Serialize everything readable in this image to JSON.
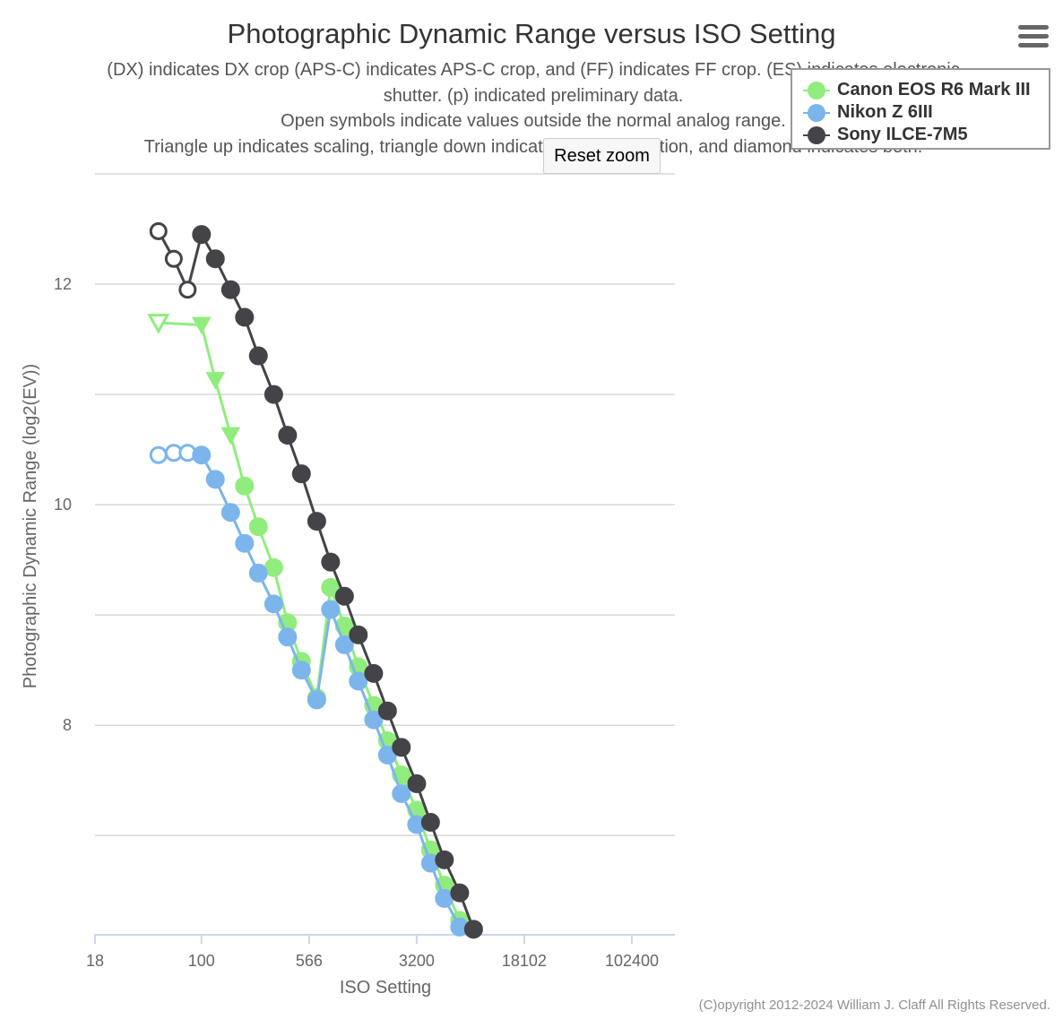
{
  "header": {
    "title": "Photographic Dynamic Range versus ISO Setting",
    "subtitle_lines": [
      "(DX) indicates DX crop (APS-C) indicates APS-C crop, and (FF) indicates FF crop. (ES) indicates electronic",
      "shutter. (p) indicated preliminary data.",
      "Open symbols indicate values outside the normal analog range.",
      "Triangle up indicates scaling, triangle down indicates noise reduction, and diamond indicates both."
    ]
  },
  "controls": {
    "reset_zoom_label": "Reset zoom",
    "menu_icon": "hamburger-menu-icon"
  },
  "footer": {
    "copyright": "(C)opyright 2012-2024 William J. Claff All Rights Reserved."
  },
  "chart_data": {
    "type": "line",
    "title": "Photographic Dynamic Range versus ISO Setting",
    "xlabel": "ISO Setting",
    "ylabel": "Photographic Dynamic Range (log2(EV))",
    "x_scale": "log2",
    "xlim": [
      18,
      204800
    ],
    "ylim": [
      6.1,
      13
    ],
    "x_ticks": [
      18,
      100,
      566,
      3200,
      18102,
      102400
    ],
    "y_ticks": [
      8,
      10,
      12
    ],
    "y_gridlines": [
      7,
      8,
      9,
      10,
      11,
      12,
      13
    ],
    "grid": true,
    "legend_position": "top-right",
    "series": [
      {
        "name": "Canon EOS R6 Mark III",
        "color": "#90ed7d",
        "points": [
          {
            "x": 50,
            "y": 11.65,
            "marker": "triangle-down",
            "open": true
          },
          {
            "x": 100,
            "y": 11.63,
            "marker": "triangle-down",
            "open": false
          },
          {
            "x": 125,
            "y": 11.13,
            "marker": "triangle-down",
            "open": false
          },
          {
            "x": 160,
            "y": 10.63,
            "marker": "triangle-down",
            "open": false
          },
          {
            "x": 200,
            "y": 10.17,
            "marker": "circle",
            "open": false
          },
          {
            "x": 250,
            "y": 9.8,
            "marker": "circle",
            "open": false
          },
          {
            "x": 320,
            "y": 9.43,
            "marker": "circle",
            "open": false
          },
          {
            "x": 400,
            "y": 8.93,
            "marker": "circle",
            "open": false
          },
          {
            "x": 500,
            "y": 8.58,
            "marker": "circle",
            "open": false
          },
          {
            "x": 640,
            "y": 8.25,
            "marker": "circle",
            "open": false
          },
          {
            "x": 800,
            "y": 9.25,
            "marker": "circle",
            "open": false
          },
          {
            "x": 1000,
            "y": 8.9,
            "marker": "circle",
            "open": false
          },
          {
            "x": 1250,
            "y": 8.53,
            "marker": "circle",
            "open": false
          },
          {
            "x": 1600,
            "y": 8.18,
            "marker": "circle",
            "open": false
          },
          {
            "x": 2000,
            "y": 7.86,
            "marker": "circle",
            "open": false
          },
          {
            "x": 2500,
            "y": 7.55,
            "marker": "circle",
            "open": false
          },
          {
            "x": 3200,
            "y": 7.23,
            "marker": "circle",
            "open": false
          },
          {
            "x": 4000,
            "y": 6.87,
            "marker": "circle",
            "open": false
          },
          {
            "x": 5000,
            "y": 6.55,
            "marker": "circle",
            "open": false
          },
          {
            "x": 6400,
            "y": 6.23,
            "marker": "circle",
            "open": false
          }
        ]
      },
      {
        "name": "Nikon Z 6III",
        "color": "#7cb5ec",
        "points": [
          {
            "x": 50,
            "y": 10.45,
            "marker": "circle",
            "open": true
          },
          {
            "x": 64,
            "y": 10.47,
            "marker": "circle",
            "open": true
          },
          {
            "x": 80,
            "y": 10.47,
            "marker": "circle",
            "open": true
          },
          {
            "x": 100,
            "y": 10.45,
            "marker": "circle",
            "open": false
          },
          {
            "x": 125,
            "y": 10.23,
            "marker": "circle",
            "open": false
          },
          {
            "x": 160,
            "y": 9.93,
            "marker": "circle",
            "open": false
          },
          {
            "x": 200,
            "y": 9.65,
            "marker": "circle",
            "open": false
          },
          {
            "x": 250,
            "y": 9.38,
            "marker": "circle",
            "open": false
          },
          {
            "x": 320,
            "y": 9.1,
            "marker": "circle",
            "open": false
          },
          {
            "x": 400,
            "y": 8.8,
            "marker": "circle",
            "open": false
          },
          {
            "x": 500,
            "y": 8.5,
            "marker": "circle",
            "open": false
          },
          {
            "x": 640,
            "y": 8.23,
            "marker": "circle",
            "open": false
          },
          {
            "x": 800,
            "y": 9.05,
            "marker": "circle",
            "open": false
          },
          {
            "x": 1000,
            "y": 8.73,
            "marker": "circle",
            "open": false
          },
          {
            "x": 1250,
            "y": 8.4,
            "marker": "circle",
            "open": false
          },
          {
            "x": 1600,
            "y": 8.05,
            "marker": "circle",
            "open": false
          },
          {
            "x": 2000,
            "y": 7.73,
            "marker": "circle",
            "open": false
          },
          {
            "x": 2500,
            "y": 7.38,
            "marker": "circle",
            "open": false
          },
          {
            "x": 3200,
            "y": 7.1,
            "marker": "circle",
            "open": false
          },
          {
            "x": 4000,
            "y": 6.75,
            "marker": "circle",
            "open": false
          },
          {
            "x": 5000,
            "y": 6.43,
            "marker": "circle",
            "open": false
          },
          {
            "x": 6400,
            "y": 6.17,
            "marker": "circle",
            "open": false
          }
        ]
      },
      {
        "name": "Sony ILCE-7M5",
        "color": "#434348",
        "points": [
          {
            "x": 50,
            "y": 12.48,
            "marker": "circle",
            "open": true
          },
          {
            "x": 64,
            "y": 12.23,
            "marker": "circle",
            "open": true
          },
          {
            "x": 80,
            "y": 11.95,
            "marker": "circle",
            "open": true
          },
          {
            "x": 100,
            "y": 12.45,
            "marker": "circle",
            "open": false
          },
          {
            "x": 125,
            "y": 12.23,
            "marker": "circle",
            "open": false
          },
          {
            "x": 160,
            "y": 11.95,
            "marker": "circle",
            "open": false
          },
          {
            "x": 200,
            "y": 11.7,
            "marker": "circle",
            "open": false
          },
          {
            "x": 250,
            "y": 11.35,
            "marker": "circle",
            "open": false
          },
          {
            "x": 320,
            "y": 11.0,
            "marker": "circle",
            "open": false
          },
          {
            "x": 400,
            "y": 10.63,
            "marker": "circle",
            "open": false
          },
          {
            "x": 500,
            "y": 10.28,
            "marker": "circle",
            "open": false
          },
          {
            "x": 640,
            "y": 9.85,
            "marker": "circle",
            "open": false
          },
          {
            "x": 800,
            "y": 9.48,
            "marker": "circle",
            "open": false
          },
          {
            "x": 1000,
            "y": 9.17,
            "marker": "circle",
            "open": false
          },
          {
            "x": 1250,
            "y": 8.82,
            "marker": "circle",
            "open": false
          },
          {
            "x": 1600,
            "y": 8.47,
            "marker": "circle",
            "open": false
          },
          {
            "x": 2000,
            "y": 8.13,
            "marker": "circle",
            "open": false
          },
          {
            "x": 2500,
            "y": 7.8,
            "marker": "circle",
            "open": false
          },
          {
            "x": 3200,
            "y": 7.47,
            "marker": "circle",
            "open": false
          },
          {
            "x": 4000,
            "y": 7.12,
            "marker": "circle",
            "open": false
          },
          {
            "x": 5000,
            "y": 6.78,
            "marker": "circle",
            "open": false
          },
          {
            "x": 6400,
            "y": 6.48,
            "marker": "circle",
            "open": false
          },
          {
            "x": 8000,
            "y": 6.15,
            "marker": "circle",
            "open": false
          }
        ]
      }
    ]
  }
}
